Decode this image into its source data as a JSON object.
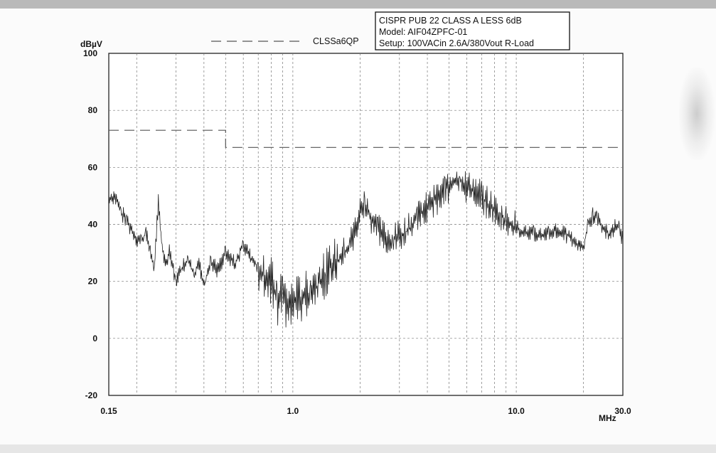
{
  "chart_data": {
    "type": "line",
    "ylabel": "dBµV",
    "xlabel": "MHz",
    "xscale": "log",
    "xlim": [
      0.15,
      30.0
    ],
    "ylim": [
      -20,
      100
    ],
    "y_ticks": [
      100,
      80,
      60,
      40,
      20,
      0,
      -20
    ],
    "x_tick_labels": [
      {
        "value": 0.15,
        "label": "0.15"
      },
      {
        "value": 1.0,
        "label": "1.0"
      },
      {
        "value": 10.0,
        "label": "10.0"
      },
      {
        "value": 30.0,
        "label": "30.0"
      }
    ],
    "grid": true,
    "info_box": [
      "CISPR PUB 22 CLASS A LESS 6dB",
      "Model: AIF04ZPFC-01",
      "Setup: 100VACin 2.6A/380Vout  R-Load"
    ],
    "legend": {
      "position": "top-center",
      "entries": [
        "CLSSa6QP"
      ]
    },
    "series": [
      {
        "name": "CLSSa6QP",
        "style": "dashed",
        "color": "#555555",
        "x": [
          0.15,
          0.5,
          0.5,
          30.0
        ],
        "y": [
          73,
          73,
          67,
          67
        ]
      },
      {
        "style": "solid",
        "color": "#222222",
        "x": [
          0.15,
          0.16,
          0.17,
          0.18,
          0.19,
          0.2,
          0.21,
          0.22,
          0.23,
          0.24,
          0.25,
          0.26,
          0.27,
          0.28,
          0.3,
          0.32,
          0.34,
          0.36,
          0.38,
          0.4,
          0.43,
          0.46,
          0.5,
          0.55,
          0.6,
          0.65,
          0.7,
          0.75,
          0.8,
          0.85,
          0.9,
          0.95,
          1.0,
          1.1,
          1.2,
          1.3,
          1.4,
          1.5,
          1.6,
          1.7,
          1.8,
          1.9,
          2.0,
          2.1,
          2.2,
          2.4,
          2.6,
          2.8,
          3.0,
          3.3,
          3.6,
          4.0,
          4.4,
          4.8,
          5.2,
          5.6,
          6.0,
          6.5,
          7.0,
          7.5,
          8.0,
          8.5,
          9.0,
          9.5,
          10.0,
          11.0,
          12.0,
          13.0,
          14.0,
          15.0,
          16.0,
          17.0,
          18.0,
          19.0,
          20.0,
          21.0,
          22.0,
          23.0,
          24.0,
          25.0,
          26.0,
          27.0,
          28.0,
          29.0,
          30.0
        ],
        "y": [
          49,
          50,
          44,
          42,
          38,
          35,
          34,
          37,
          30,
          25,
          48,
          32,
          25,
          30,
          20,
          25,
          28,
          22,
          26,
          18,
          27,
          24,
          30,
          26,
          33,
          28,
          25,
          22,
          20,
          13,
          15,
          11,
          13,
          14,
          16,
          19,
          22,
          26,
          27,
          30,
          33,
          38,
          44,
          48,
          42,
          38,
          35,
          34,
          36,
          38,
          42,
          46,
          49,
          52,
          55,
          56,
          53,
          52,
          50,
          47,
          45,
          43,
          41,
          40,
          39,
          37,
          37,
          36,
          37,
          38,
          37,
          36,
          34,
          33,
          32,
          40,
          43,
          42,
          40,
          38,
          36,
          38,
          40,
          39,
          34
        ]
      }
    ]
  }
}
